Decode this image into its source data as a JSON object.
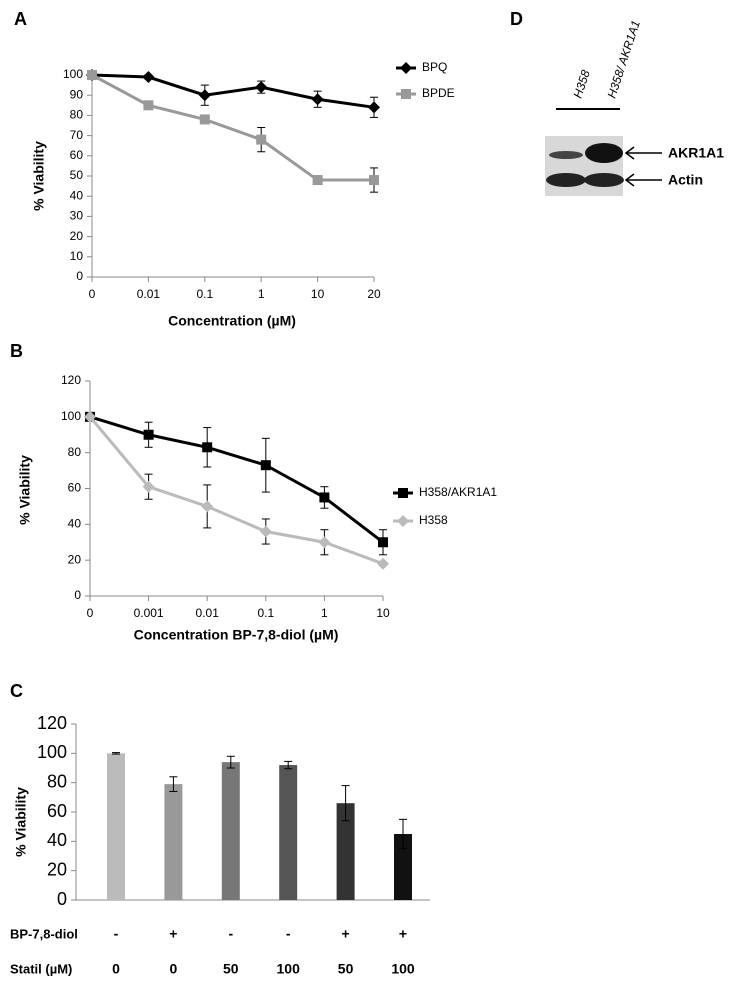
{
  "panel_labels": [
    "A",
    "B",
    "C",
    "D"
  ],
  "chart_data": [
    {
      "type": "line",
      "xlabel": "Concentration (µM)",
      "ylabel": "% Viability",
      "categories": [
        "0",
        "0.01",
        "0.1",
        "1",
        "10",
        "20"
      ],
      "ylim": [
        0,
        100
      ],
      "yticks": [
        0,
        10,
        20,
        30,
        40,
        50,
        60,
        70,
        80,
        90,
        100
      ],
      "legend": "top-right",
      "series": [
        {
          "name": "BPQ",
          "color": "#000000",
          "marker": "diamond",
          "values": [
            100,
            99,
            90,
            94,
            88,
            84
          ],
          "errors": [
            0,
            1,
            5,
            3,
            4,
            5
          ]
        },
        {
          "name": "BPDE",
          "color": "#999999",
          "marker": "square",
          "values": [
            100,
            85,
            78,
            68,
            48,
            48
          ],
          "errors": [
            0,
            2,
            1,
            6,
            1,
            6
          ]
        }
      ]
    },
    {
      "type": "line",
      "xlabel": "Concentration BP-7,8-diol (µM)",
      "ylabel": "% Viability",
      "categories": [
        "0",
        "0.001",
        "0.01",
        "0.1",
        "1",
        "10"
      ],
      "ylim": [
        0,
        120
      ],
      "yticks": [
        0,
        20,
        40,
        60,
        80,
        100,
        120
      ],
      "legend": "right",
      "series": [
        {
          "name": "H358/AKR1A1",
          "color": "#000000",
          "marker": "square",
          "values": [
            100,
            90,
            83,
            73,
            55,
            30
          ],
          "errors": [
            0,
            7,
            11,
            15,
            6,
            7
          ]
        },
        {
          "name": "H358",
          "color": "#bbbbbb",
          "marker": "diamond",
          "values": [
            100,
            61,
            50,
            36,
            30,
            18
          ],
          "errors": [
            0,
            7,
            12,
            7,
            7,
            1
          ]
        }
      ]
    },
    {
      "type": "bar",
      "ylabel": "% Viability",
      "ylim": [
        0,
        120
      ],
      "yticks": [
        0,
        20,
        40,
        60,
        80,
        100,
        120
      ],
      "values": [
        100,
        79,
        94,
        92,
        66,
        45
      ],
      "errors": [
        0.5,
        5,
        4,
        2.5,
        12,
        10
      ],
      "colors": [
        "#bbbbbb",
        "#999999",
        "#777777",
        "#555555",
        "#333333",
        "#111111"
      ],
      "rows": [
        {
          "name": "BP-7,8-diol",
          "values": [
            "-",
            "+",
            "-",
            "-",
            "+",
            "+"
          ]
        },
        {
          "name": "Statil (µM)",
          "values": [
            "0",
            "0",
            "50",
            "100",
            "50",
            "100"
          ]
        }
      ]
    }
  ],
  "blot": {
    "lanes": [
      "H358",
      "H358/ AKR1A1"
    ],
    "bands": [
      "AKR1A1",
      "Actin"
    ]
  }
}
